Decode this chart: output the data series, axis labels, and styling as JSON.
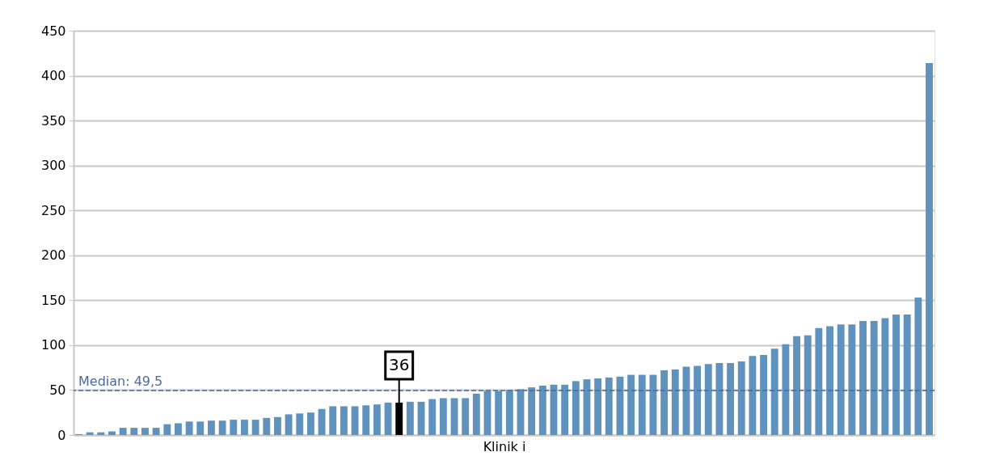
{
  "chart_data": {
    "type": "bar",
    "xlabel": "Klinik i",
    "categories": [
      null,
      null,
      null,
      null,
      null,
      null,
      null,
      null,
      null,
      null,
      null,
      null,
      null,
      null,
      null,
      null,
      null,
      null,
      null,
      null,
      null,
      null,
      null,
      null,
      null,
      null,
      null,
      null,
      null,
      null,
      null,
      null,
      null,
      null,
      null,
      null,
      null,
      null,
      null,
      null,
      null,
      null,
      null,
      null,
      null,
      null,
      null,
      null,
      null,
      null,
      null,
      null,
      null,
      null,
      null,
      null,
      null,
      null,
      null,
      null,
      null,
      null,
      null,
      null,
      null,
      null,
      null,
      null,
      null,
      null,
      null,
      null,
      null,
      null,
      null,
      null,
      null,
      null
    ],
    "values": [
      1,
      3,
      3,
      4,
      8,
      8,
      8,
      8,
      12,
      13,
      15,
      15,
      16,
      16,
      17,
      17,
      17,
      19,
      20,
      23,
      24,
      25,
      29,
      32,
      32,
      32,
      33,
      34,
      36,
      36,
      37,
      37,
      40,
      41,
      41,
      41,
      46,
      49,
      49,
      50,
      51,
      53,
      55,
      56,
      56,
      60,
      62,
      63,
      64,
      65,
      67,
      67,
      67,
      72,
      73,
      76,
      77,
      79,
      80,
      80,
      82,
      88,
      89,
      96,
      101,
      110,
      111,
      119,
      121,
      123,
      123,
      127,
      127,
      130,
      134,
      134,
      153,
      414
    ],
    "colors": [
      "#6092be",
      "#6092be",
      "#6092be",
      "#6092be",
      "#6092be",
      "#6092be",
      "#6092be",
      "#6092be",
      "#6092be",
      "#6092be",
      "#6092be",
      "#6092be",
      "#6092be",
      "#6092be",
      "#6092be",
      "#6092be",
      "#6092be",
      "#6092be",
      "#6092be",
      "#6092be",
      "#6092be",
      "#6092be",
      "#6092be",
      "#6092be",
      "#6092be",
      "#6092be",
      "#6092be",
      "#6092be",
      "#6092be",
      "#000000",
      "#6092be",
      "#6092be",
      "#6092be",
      "#6092be",
      "#6092be",
      "#6092be",
      "#6092be",
      "#6092be",
      "#6092be",
      "#6092be",
      "#6092be",
      "#6092be",
      "#6092be",
      "#6092be",
      "#6092be",
      "#6092be",
      "#6092be",
      "#6092be",
      "#6092be",
      "#6092be",
      "#6092be",
      "#6092be",
      "#6092be",
      "#6092be",
      "#6092be",
      "#6092be",
      "#6092be",
      "#6092be",
      "#6092be",
      "#6092be",
      "#6092be",
      "#6092be",
      "#6092be",
      "#6092be",
      "#6092be",
      "#6092be",
      "#6092be",
      "#6092be",
      "#6092be",
      "#6092be",
      "#6092be",
      "#6092be",
      "#6092be",
      "#6092be",
      "#6092be",
      "#6092be",
      "#6092be",
      "#6092be"
    ],
    "value_labels": [
      null,
      null,
      null,
      null,
      null,
      null,
      null,
      null,
      null,
      null,
      null,
      null,
      null,
      null,
      null,
      null,
      null,
      null,
      null,
      null,
      null,
      null,
      null,
      null,
      null,
      null,
      null,
      null,
      null,
      "36",
      null,
      null,
      null,
      null,
      null,
      null,
      null,
      null,
      null,
      null,
      null,
      null,
      null,
      null,
      null,
      null,
      null,
      null,
      null,
      null,
      null,
      null,
      null,
      null,
      null,
      null,
      null,
      null,
      null,
      null,
      null,
      null,
      null,
      null,
      null,
      null,
      null,
      null,
      null,
      null,
      null,
      null,
      null,
      null,
      null,
      null,
      null,
      null
    ],
    "ylim": [
      0,
      450
    ],
    "yticks": [
      0,
      50,
      100,
      150,
      200,
      250,
      300,
      350,
      400,
      450
    ],
    "grid": "y",
    "ref_lines": [
      {
        "axis": "y",
        "value": 49.5,
        "label": "Median: 49,5",
        "color": "#4a6aa0",
        "line_style": "dashed"
      }
    ]
  }
}
